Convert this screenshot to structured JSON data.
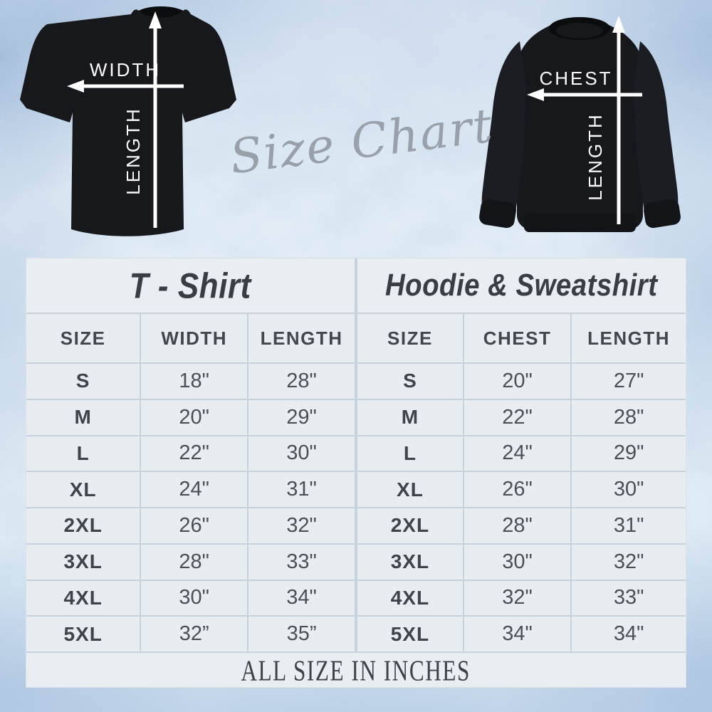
{
  "script_title": "Size Chart",
  "footer_note": "ALL SIZE IN INCHES",
  "colors": {
    "background_ice_blue": "#cfdeee",
    "cell_bg": "#e8edf2",
    "grid_line": "#c7d2dd",
    "heading_text": "#393e44",
    "value_text": "#4b5056",
    "script_gray": "#98a0a9",
    "garment_black": "#17181c",
    "arrow_white": "#ffffff"
  },
  "diagrams": {
    "tshirt": {
      "garment": "t-shirt (back view)",
      "horizontal_label": "WIDTH",
      "vertical_label": "LENGTH"
    },
    "sweatshirt": {
      "garment": "crewneck sweatshirt",
      "horizontal_label": "CHEST",
      "vertical_label": "LENGTH"
    }
  },
  "tables": [
    {
      "title": "T - Shirt",
      "headers": [
        "SIZE",
        "WIDTH",
        "LENGTH"
      ],
      "rows": [
        [
          "S",
          "18\"",
          "28\""
        ],
        [
          "M",
          "20\"",
          "29\""
        ],
        [
          "L",
          "22\"",
          "30\""
        ],
        [
          "XL",
          "24\"",
          "31\""
        ],
        [
          "2XL",
          "26\"",
          "32\""
        ],
        [
          "3XL",
          "28\"",
          "33\""
        ],
        [
          "4XL",
          "30\"",
          "34\""
        ],
        [
          "5XL",
          "32”",
          "35”"
        ]
      ]
    },
    {
      "title": "Hoodie & Sweatshirt",
      "headers": [
        "SIZE",
        "CHEST",
        "LENGTH"
      ],
      "rows": [
        [
          "S",
          "20\"",
          "27\""
        ],
        [
          "M",
          "22\"",
          "28\""
        ],
        [
          "L",
          "24\"",
          "29\""
        ],
        [
          "XL",
          "26\"",
          "30\""
        ],
        [
          "2XL",
          "28\"",
          "31\""
        ],
        [
          "3XL",
          "30\"",
          "32\""
        ],
        [
          "4XL",
          "32\"",
          "33\""
        ],
        [
          "5XL",
          "34\"",
          "34\""
        ]
      ]
    }
  ],
  "chart_data": {
    "type": "table",
    "title": "Size Chart",
    "unit": "inches",
    "footer": "ALL SIZE IN INCHES",
    "tables": [
      {
        "name": "T - Shirt",
        "columns": [
          "SIZE",
          "WIDTH",
          "LENGTH"
        ],
        "sizes": [
          "S",
          "M",
          "L",
          "XL",
          "2XL",
          "3XL",
          "4XL",
          "5XL"
        ],
        "width_in": [
          18,
          20,
          22,
          24,
          26,
          28,
          30,
          32
        ],
        "length_in": [
          28,
          29,
          30,
          31,
          32,
          33,
          34,
          35
        ]
      },
      {
        "name": "Hoodie & Sweatshirt",
        "columns": [
          "SIZE",
          "CHEST",
          "LENGTH"
        ],
        "sizes": [
          "S",
          "M",
          "L",
          "XL",
          "2XL",
          "3XL",
          "4XL",
          "5XL"
        ],
        "chest_in": [
          20,
          22,
          24,
          26,
          28,
          30,
          32,
          34
        ],
        "length_in": [
          27,
          28,
          29,
          30,
          31,
          32,
          33,
          34
        ]
      }
    ]
  }
}
